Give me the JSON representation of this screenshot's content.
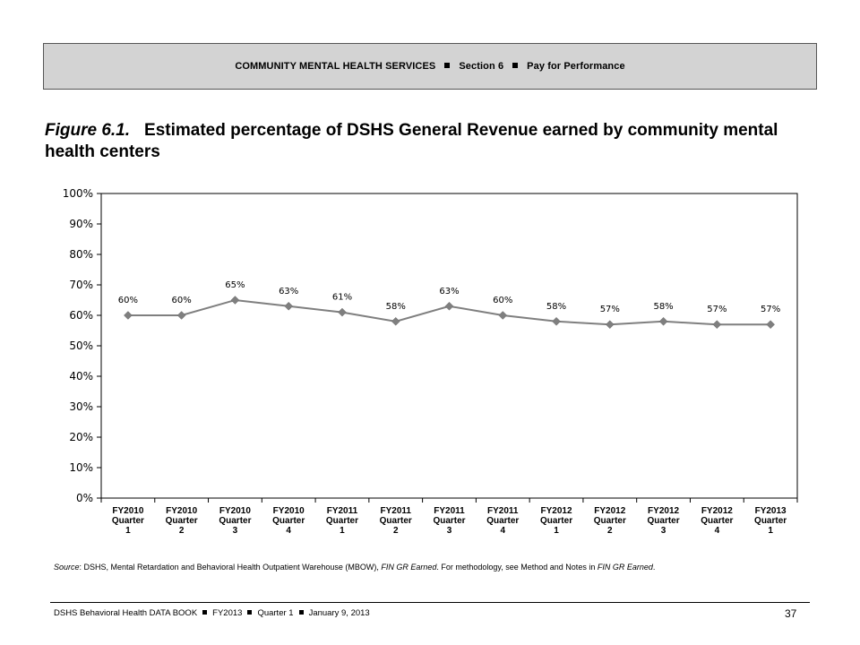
{
  "header": {
    "part1": "COMMUNITY MENTAL HEALTH SERVICES",
    "part2": "Section 6",
    "part3": "Pay for Performance"
  },
  "figure": {
    "number": "Figure 6.1.",
    "title": "Estimated percentage of DSHS General Revenue earned by community mental health centers"
  },
  "chart_data": {
    "type": "line",
    "title": "",
    "xlabel": "",
    "ylabel": "",
    "ylim": [
      0,
      100
    ],
    "yticks": [
      "0%",
      "10%",
      "20%",
      "30%",
      "40%",
      "50%",
      "60%",
      "70%",
      "80%",
      "90%",
      "100%"
    ],
    "categories": [
      [
        "FY2010",
        "Quarter",
        "1"
      ],
      [
        "FY2010",
        "Quarter",
        "2"
      ],
      [
        "FY2010",
        "Quarter",
        "3"
      ],
      [
        "FY2010",
        "Quarter",
        "4"
      ],
      [
        "FY2011",
        "Quarter",
        "1"
      ],
      [
        "FY2011",
        "Quarter",
        "2"
      ],
      [
        "FY2011",
        "Quarter",
        "3"
      ],
      [
        "FY2011",
        "Quarter",
        "4"
      ],
      [
        "FY2012",
        "Quarter",
        "1"
      ],
      [
        "FY2012",
        "Quarter",
        "2"
      ],
      [
        "FY2012",
        "Quarter",
        "3"
      ],
      [
        "FY2012",
        "Quarter",
        "4"
      ],
      [
        "FY2013",
        "Quarter",
        "1"
      ]
    ],
    "values": [
      60,
      60,
      65,
      63,
      61,
      58,
      63,
      60,
      58,
      57,
      58,
      57,
      57
    ],
    "data_labels": [
      "60%",
      "60%",
      "65%",
      "63%",
      "61%",
      "58%",
      "63%",
      "60%",
      "58%",
      "57%",
      "58%",
      "57%",
      "57%"
    ],
    "grid": false,
    "line_color": "#7f7f7f",
    "marker": "diamond"
  },
  "source": {
    "label": "Source",
    "text_a": ": DSHS, Mental Retardation and Behavioral Health Outpatient Warehouse (MBOW), ",
    "italic_a": "FIN GR Earned",
    "text_b": ". For methodology, see Method and Notes in ",
    "italic_b": "FIN GR Earned",
    "text_c": "."
  },
  "footer": {
    "part1": "DSHS Behavioral Health DATA BOOK",
    "part2": "FY2013",
    "part3": "Quarter 1",
    "part4": "January  9, 2013",
    "page": "37"
  }
}
